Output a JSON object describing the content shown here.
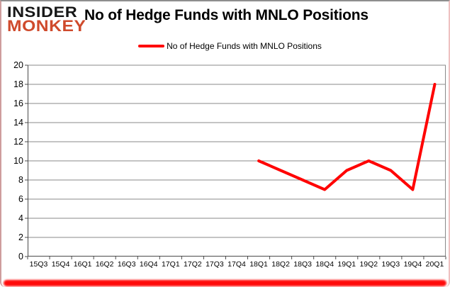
{
  "logo": {
    "line1": "INSIDER",
    "line2": "MONKEY"
  },
  "header": {
    "title": "No of Hedge Funds with MNLO Positions"
  },
  "legend": {
    "label": "No of Hedge Funds with MNLO Positions",
    "marker_color": "#ff0000"
  },
  "colors": {
    "line": "#ff0000",
    "gridline": "#8a8a8a",
    "axis": "#4a4a4a",
    "logo_black": "#161616",
    "logo_red": "#cf4a2c",
    "frame_bottom": "#ff0b0b"
  },
  "chart_data": {
    "type": "line",
    "title": "No of Hedge Funds with MNLO Positions",
    "categories": [
      "15Q3",
      "15Q4",
      "16Q1",
      "16Q2",
      "16Q3",
      "16Q4",
      "17Q1",
      "17Q2",
      "17Q3",
      "17Q4",
      "18Q1",
      "18Q2",
      "18Q3",
      "18Q4",
      "19Q1",
      "19Q2",
      "19Q3",
      "19Q4",
      "20Q1"
    ],
    "series": [
      {
        "name": "No of Hedge Funds with MNLO Positions",
        "color": "#ff0000",
        "values": [
          null,
          null,
          null,
          null,
          null,
          null,
          null,
          null,
          null,
          null,
          10,
          9,
          8,
          7,
          9,
          10,
          9,
          7,
          18
        ]
      }
    ],
    "ylim": [
      0,
      20
    ],
    "yticks": [
      0,
      2,
      4,
      6,
      8,
      10,
      12,
      14,
      16,
      18,
      20
    ],
    "grid": true,
    "legend_position": "top-center"
  }
}
